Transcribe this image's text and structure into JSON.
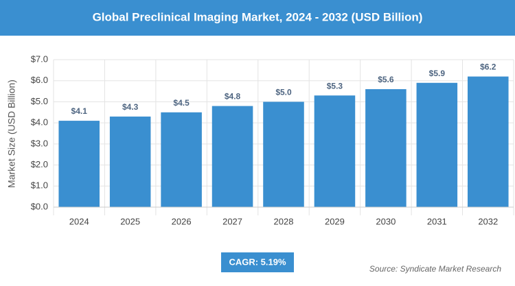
{
  "chart_data": {
    "type": "bar",
    "title": "Global Preclinical Imaging Market, 2024 - 2032 (USD Billion)",
    "y_label": "Market Size (USD Billion)",
    "categories": [
      "2024",
      "2025",
      "2026",
      "2027",
      "2028",
      "2029",
      "2030",
      "2031",
      "2032"
    ],
    "values": [
      4.1,
      4.3,
      4.5,
      4.8,
      5.0,
      5.3,
      5.6,
      5.9,
      6.2
    ],
    "value_labels": [
      "$4.1",
      "$4.3",
      "$4.5",
      "$4.8",
      "$5.0",
      "$5.3",
      "$5.6",
      "$5.9",
      "$6.2"
    ],
    "color": "#3a8fd0",
    "ylim": [
      0,
      7
    ],
    "yticks": [
      {
        "value": 0,
        "label": "$0.0"
      },
      {
        "value": 1,
        "label": "$1.0"
      },
      {
        "value": 2,
        "label": "$2.0"
      },
      {
        "value": 3,
        "label": "$3.0"
      },
      {
        "value": 4,
        "label": "$4.0"
      },
      {
        "value": 5,
        "label": "$5.0"
      },
      {
        "value": 6,
        "label": "$6.0"
      },
      {
        "value": 7,
        "label": "$7.0"
      }
    ],
    "grid": true,
    "cagr": "CAGR: 5.19%",
    "source": "Source: Syndicate Market Research"
  }
}
